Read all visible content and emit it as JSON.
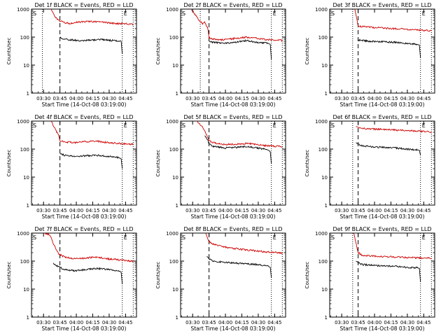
{
  "figure": {
    "background": "#ffffff",
    "colors": {
      "events": "#000000",
      "lld": "#cc0000",
      "axes": "#000000"
    }
  },
  "chart_data": [
    {
      "type": "line",
      "title": "Det 1f BLACK = Events, RED = LLD",
      "xlabel": "Start Time (14-Oct-08 03:19:00)",
      "ylabel": "Counts/sec",
      "yscale": "log",
      "ylim": [
        1,
        1000
      ],
      "y_ticks": [
        "1",
        "10",
        "100",
        "1000"
      ],
      "x_ticks": [
        "03:30",
        "03:45",
        "04:00",
        "04:15",
        "04:30",
        "04:45"
      ],
      "x_tick_minutes": [
        11,
        26,
        41,
        56,
        71,
        86
      ],
      "xlim_minutes": [
        0,
        96
      ],
      "markers": [
        {
          "label": "S",
          "minute": 0,
          "style": "solid"
        },
        {
          "label": "",
          "minute": 10,
          "style": "dotted"
        },
        {
          "label": "",
          "minute": 26,
          "style": "dashed"
        },
        {
          "label": "E",
          "minute": 83,
          "style": "dotted"
        },
        {
          "label": "",
          "minute": 93,
          "style": "dotted"
        }
      ],
      "grid": false,
      "legend": "none",
      "series": [
        {
          "name": "Events",
          "x": [
            26,
            29,
            35,
            45,
            55,
            65,
            75,
            82,
            83
          ],
          "y": [
            95,
            85,
            80,
            75,
            78,
            82,
            75,
            70,
            25
          ]
        },
        {
          "name": "LLD",
          "x": [
            18,
            22,
            26,
            30,
            35,
            45,
            55,
            65,
            75,
            85,
            93
          ],
          "y": [
            1000,
            500,
            380,
            330,
            310,
            350,
            360,
            340,
            310,
            300,
            290
          ]
        }
      ]
    },
    {
      "type": "line",
      "title": "Det 2f BLACK = Events, RED = LLD",
      "xlabel": "Start Time (14-Oct-08 03:19:00)",
      "ylabel": "Counts/sec",
      "yscale": "log",
      "ylim": [
        1,
        1000
      ],
      "y_ticks": [
        "1",
        "10",
        "100",
        "1000"
      ],
      "x_ticks": [
        "03:30",
        "03:45",
        "04:00",
        "04:15",
        "04:30",
        "04:45"
      ],
      "x_tick_minutes": [
        11,
        26,
        41,
        56,
        71,
        86
      ],
      "xlim_minutes": [
        0,
        96
      ],
      "markers": [
        {
          "label": "S",
          "minute": 0,
          "style": "solid"
        },
        {
          "label": "",
          "minute": 18,
          "style": "dotted"
        },
        {
          "label": "",
          "minute": 26,
          "style": "dashed"
        },
        {
          "label": "E",
          "minute": 83,
          "style": "dotted"
        },
        {
          "label": "",
          "minute": 93,
          "style": "dotted"
        }
      ],
      "grid": false,
      "legend": "none",
      "series": [
        {
          "name": "Events",
          "x": [
            26,
            30,
            40,
            50,
            60,
            70,
            80,
            82,
            83
          ],
          "y": [
            70,
            65,
            60,
            65,
            75,
            65,
            60,
            55,
            16
          ]
        },
        {
          "name": "LLD",
          "x": [
            10,
            15,
            20,
            22,
            25,
            26,
            30,
            40,
            50,
            60,
            70,
            80,
            90,
            93
          ],
          "y": [
            1000,
            500,
            300,
            350,
            200,
            95,
            85,
            80,
            90,
            100,
            90,
            80,
            80,
            75
          ]
        }
      ]
    },
    {
      "type": "line",
      "title": "Det 3f BLACK = Events, RED = LLD",
      "xlabel": "Start Time (14-Oct-08 03:19:00)",
      "ylabel": "Counts/sec",
      "yscale": "log",
      "ylim": [
        1,
        1000
      ],
      "y_ticks": [
        "1",
        "10",
        "100",
        "1000"
      ],
      "x_ticks": [
        "03:30",
        "03:45",
        "04:00",
        "04:15",
        "04:30",
        "04:45"
      ],
      "x_tick_minutes": [
        11,
        26,
        41,
        56,
        71,
        86
      ],
      "xlim_minutes": [
        0,
        96
      ],
      "markers": [
        {
          "label": "S",
          "minute": 0,
          "style": "solid"
        },
        {
          "label": "",
          "minute": 21,
          "style": "dotted"
        },
        {
          "label": "",
          "minute": 26,
          "style": "dashed"
        },
        {
          "label": "E",
          "minute": 83,
          "style": "dotted"
        },
        {
          "label": "",
          "minute": 93,
          "style": "dotted"
        }
      ],
      "grid": false,
      "legend": "none",
      "series": [
        {
          "name": "Events",
          "x": [
            26,
            30,
            40,
            50,
            60,
            70,
            80,
            82,
            83
          ],
          "y": [
            80,
            75,
            70,
            68,
            65,
            60,
            55,
            52,
            18
          ]
        },
        {
          "name": "LLD",
          "x": [
            23,
            25,
            26,
            30,
            40,
            50,
            60,
            70,
            80,
            90,
            93
          ],
          "y": [
            1000,
            400,
            250,
            240,
            220,
            210,
            200,
            190,
            180,
            170,
            165
          ]
        }
      ]
    },
    {
      "type": "line",
      "title": "Det 4f BLACK = Events, RED = LLD",
      "xlabel": "Start Time (14-Oct-08 03:19:00)",
      "ylabel": "Counts/sec",
      "yscale": "log",
      "ylim": [
        1,
        1000
      ],
      "y_ticks": [
        "1",
        "10",
        "100",
        "1000"
      ],
      "x_ticks": [
        "03:30",
        "03:45",
        "04:00",
        "04:15",
        "04:30",
        "04:45"
      ],
      "x_tick_minutes": [
        11,
        26,
        41,
        56,
        71,
        86
      ],
      "xlim_minutes": [
        0,
        96
      ],
      "markers": [
        {
          "label": "S",
          "minute": 0,
          "style": "solid"
        },
        {
          "label": "",
          "minute": 26,
          "style": "dashed"
        },
        {
          "label": "E",
          "minute": 83,
          "style": "dotted"
        },
        {
          "label": "",
          "minute": 93,
          "style": "dotted"
        }
      ],
      "grid": false,
      "legend": "none",
      "series": [
        {
          "name": "Events",
          "x": [
            26,
            30,
            40,
            50,
            60,
            70,
            80,
            82,
            83
          ],
          "y": [
            70,
            60,
            55,
            58,
            60,
            55,
            50,
            45,
            20
          ]
        },
        {
          "name": "LLD",
          "x": [
            18,
            22,
            25,
            26,
            30,
            40,
            50,
            60,
            70,
            80,
            90,
            93
          ],
          "y": [
            1000,
            500,
            300,
            200,
            180,
            170,
            185,
            190,
            170,
            160,
            150,
            145
          ]
        }
      ]
    },
    {
      "type": "line",
      "title": "Det 5f BLACK = Events, RED = LLD",
      "xlabel": "Start Time (14-Oct-08 03:19:00)",
      "ylabel": "Counts/sec",
      "yscale": "log",
      "ylim": [
        1,
        1000
      ],
      "y_ticks": [
        "1",
        "10",
        "100",
        "1000"
      ],
      "x_ticks": [
        "03:30",
        "03:45",
        "04:00",
        "04:15",
        "04:30",
        "04:45"
      ],
      "x_tick_minutes": [
        11,
        26,
        41,
        56,
        71,
        86
      ],
      "xlim_minutes": [
        0,
        96
      ],
      "markers": [
        {
          "label": "S",
          "minute": 0,
          "style": "solid"
        },
        {
          "label": "",
          "minute": 26,
          "style": "dashed"
        },
        {
          "label": "E",
          "minute": 83,
          "style": "dotted"
        },
        {
          "label": "",
          "minute": 93,
          "style": "dotted"
        }
      ],
      "grid": false,
      "legend": "none",
      "series": [
        {
          "name": "Events",
          "x": [
            22,
            25,
            26,
            30,
            40,
            50,
            60,
            70,
            80,
            82,
            83
          ],
          "y": [
            300,
            200,
            150,
            125,
            110,
            115,
            125,
            110,
            95,
            80,
            30
          ]
        },
        {
          "name": "LLD",
          "x": [
            15,
            20,
            22,
            25,
            26,
            30,
            40,
            50,
            60,
            70,
            80,
            90,
            93
          ],
          "y": [
            1000,
            600,
            450,
            250,
            200,
            170,
            145,
            150,
            160,
            145,
            130,
            125,
            120
          ]
        }
      ]
    },
    {
      "type": "line",
      "title": "Det 6f BLACK = Events, RED = LLD",
      "xlabel": "Start Time (14-Oct-08 03:19:00)",
      "ylabel": "Counts/sec",
      "yscale": "log",
      "ylim": [
        1,
        1000
      ],
      "y_ticks": [
        "1",
        "10",
        "100",
        "1000"
      ],
      "x_ticks": [
        "03:30",
        "03:45",
        "04:00",
        "04:15",
        "04:30",
        "04:45"
      ],
      "x_tick_minutes": [
        11,
        26,
        41,
        56,
        71,
        86
      ],
      "xlim_minutes": [
        0,
        96
      ],
      "markers": [
        {
          "label": "S",
          "minute": 0,
          "style": "solid"
        },
        {
          "label": "",
          "minute": 21,
          "style": "dotted"
        },
        {
          "label": "",
          "minute": 26,
          "style": "dashed"
        },
        {
          "label": "E",
          "minute": 83,
          "style": "dotted"
        },
        {
          "label": "",
          "minute": 93,
          "style": "dotted"
        }
      ],
      "grid": false,
      "legend": "none",
      "series": [
        {
          "name": "Events",
          "x": [
            24,
            26,
            30,
            40,
            50,
            60,
            70,
            80,
            82,
            83
          ],
          "y": [
            170,
            150,
            130,
            120,
            115,
            110,
            100,
            95,
            90,
            60
          ]
        },
        {
          "name": "LLD",
          "x": [
            24,
            26,
            30,
            40,
            50,
            60,
            70,
            80,
            90,
            93
          ],
          "y": [
            650,
            600,
            550,
            520,
            500,
            480,
            460,
            440,
            420,
            410
          ]
        }
      ]
    },
    {
      "type": "line",
      "title": "Det 7f BLACK = Events, RED = LLD",
      "xlabel": "Start Time (14-Oct-08 03:19:00)",
      "ylabel": "Counts/sec",
      "yscale": "log",
      "ylim": [
        1,
        1000
      ],
      "y_ticks": [
        "1",
        "10",
        "100",
        "1000"
      ],
      "x_ticks": [
        "03:30",
        "03:45",
        "04:00",
        "04:15",
        "04:30",
        "04:45"
      ],
      "x_tick_minutes": [
        11,
        26,
        41,
        56,
        71,
        86
      ],
      "xlim_minutes": [
        0,
        96
      ],
      "markers": [
        {
          "label": "S",
          "minute": 0,
          "style": "solid"
        },
        {
          "label": "",
          "minute": 26,
          "style": "dashed"
        },
        {
          "label": "E",
          "minute": 83,
          "style": "dotted"
        },
        {
          "label": "",
          "minute": 93,
          "style": "dotted"
        }
      ],
      "grid": false,
      "legend": "none",
      "series": [
        {
          "name": "Events",
          "x": [
            20,
            26,
            30,
            40,
            50,
            60,
            70,
            80,
            82,
            83
          ],
          "y": [
            80,
            60,
            50,
            45,
            50,
            55,
            50,
            45,
            40,
            15
          ]
        },
        {
          "name": "LLD",
          "x": [
            12,
            16,
            18,
            20,
            25,
            30,
            40,
            50,
            60,
            70,
            80,
            90,
            93
          ],
          "y": [
            1000,
            900,
            700,
            400,
            180,
            140,
            120,
            130,
            140,
            120,
            110,
            100,
            100
          ]
        }
      ]
    },
    {
      "type": "line",
      "title": "Det 8f BLACK = Events, RED = LLD",
      "xlabel": "Start Time (14-Oct-08 03:19:00)",
      "ylabel": "Counts/sec",
      "yscale": "log",
      "ylim": [
        1,
        1000
      ],
      "y_ticks": [
        "1",
        "10",
        "100",
        "1000"
      ],
      "x_ticks": [
        "03:30",
        "03:45",
        "04:00",
        "04:15",
        "04:30",
        "04:45"
      ],
      "x_tick_minutes": [
        11,
        26,
        41,
        56,
        71,
        86
      ],
      "xlim_minutes": [
        0,
        96
      ],
      "markers": [
        {
          "label": "S",
          "minute": 0,
          "style": "solid"
        },
        {
          "label": "",
          "minute": 26,
          "style": "dashed"
        },
        {
          "label": "E",
          "minute": 83,
          "style": "dotted"
        },
        {
          "label": "",
          "minute": 93,
          "style": "dotted"
        }
      ],
      "grid": false,
      "legend": "none",
      "series": [
        {
          "name": "Events",
          "x": [
            24,
            26,
            30,
            40,
            50,
            60,
            70,
            80,
            82,
            83
          ],
          "y": [
            150,
            120,
            100,
            90,
            85,
            80,
            75,
            65,
            60,
            25
          ]
        },
        {
          "name": "LLD",
          "x": [
            23,
            25,
            26,
            30,
            40,
            50,
            60,
            70,
            80,
            90,
            93
          ],
          "y": [
            1000,
            600,
            500,
            400,
            320,
            280,
            250,
            230,
            210,
            200,
            195
          ]
        }
      ]
    },
    {
      "type": "line",
      "title": "Det 9f BLACK = Events, RED = LLD",
      "xlabel": "Start Time (14-Oct-08 03:19:00)",
      "ylabel": "Counts/sec",
      "yscale": "log",
      "ylim": [
        1,
        1000
      ],
      "y_ticks": [
        "1",
        "10",
        "100",
        "1000"
      ],
      "x_ticks": [
        "03:30",
        "03:45",
        "04:00",
        "04:15",
        "04:30",
        "04:45"
      ],
      "x_tick_minutes": [
        11,
        26,
        41,
        56,
        71,
        86
      ],
      "xlim_minutes": [
        0,
        96
      ],
      "markers": [
        {
          "label": "S",
          "minute": 0,
          "style": "solid"
        },
        {
          "label": "",
          "minute": 21,
          "style": "dotted"
        },
        {
          "label": "",
          "minute": 26,
          "style": "dashed"
        },
        {
          "label": "E",
          "minute": 83,
          "style": "dotted"
        },
        {
          "label": "",
          "minute": 93,
          "style": "dotted"
        }
      ],
      "grid": false,
      "legend": "none",
      "series": [
        {
          "name": "Events",
          "x": [
            24,
            26,
            30,
            40,
            50,
            60,
            70,
            80,
            82,
            83
          ],
          "y": [
            100,
            90,
            75,
            70,
            68,
            65,
            60,
            58,
            55,
            18
          ]
        },
        {
          "name": "LLD",
          "x": [
            22,
            25,
            26,
            30,
            40,
            50,
            60,
            70,
            80,
            90,
            93
          ],
          "y": [
            1000,
            300,
            200,
            160,
            150,
            145,
            140,
            135,
            130,
            128,
            125
          ]
        }
      ]
    }
  ]
}
